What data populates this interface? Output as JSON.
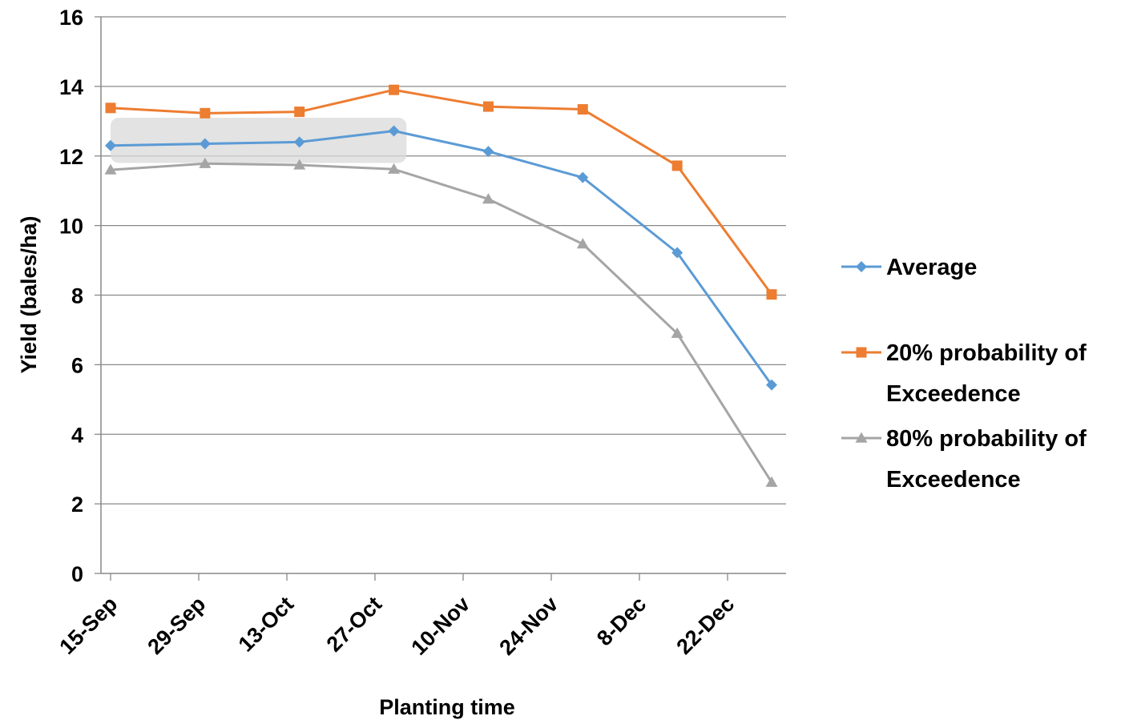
{
  "chart_data": {
    "type": "line",
    "xlabel": "Planting time",
    "ylabel": "Yield (bales/ha)",
    "ylim": [
      0,
      16
    ],
    "yticks": [
      0,
      2,
      4,
      6,
      8,
      10,
      12,
      14,
      16
    ],
    "xticks": [
      "15-Sep",
      "29-Sep",
      "13-Oct",
      "27-Oct",
      "10-Nov",
      "24-Nov",
      "8-Dec",
      "22-Dec"
    ],
    "x": [
      "15-Sep",
      "30-Sep",
      "15-Oct",
      "30-Oct",
      "14-Nov",
      "29-Nov",
      "14-Dec",
      "29-Dec"
    ],
    "grid": "horizontal",
    "legend_position": "right",
    "highlight": {
      "x_from": "15-Sep",
      "x_to": "1-Nov",
      "y_from": 11.8,
      "y_to": 13.1
    },
    "series": [
      {
        "name": "Average",
        "color": "#5B9BD5",
        "marker": "diamond",
        "values": [
          12.3,
          12.35,
          12.4,
          12.72,
          12.13,
          11.38,
          9.22,
          5.42
        ]
      },
      {
        "name_lines": [
          "20% probability of",
          "Exceedence"
        ],
        "color": "#ED7D31",
        "marker": "square",
        "values": [
          13.38,
          13.23,
          13.27,
          13.9,
          13.42,
          13.34,
          11.72,
          8.02
        ]
      },
      {
        "name_lines": [
          "80% probability of",
          "Exceedence"
        ],
        "color": "#A5A5A5",
        "marker": "triangle",
        "values": [
          11.6,
          11.78,
          11.74,
          11.62,
          10.76,
          9.47,
          6.9,
          2.62
        ]
      }
    ]
  }
}
